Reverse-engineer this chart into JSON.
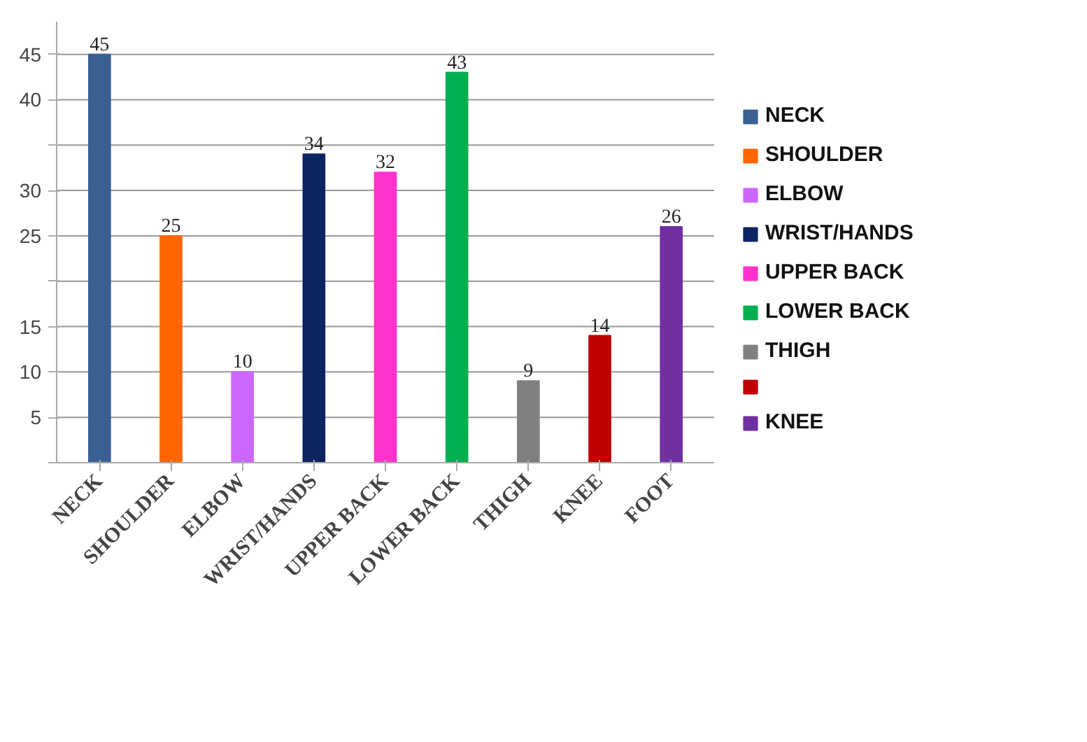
{
  "chart_data": {
    "type": "bar",
    "categories": [
      "NECK",
      "SHOULDER",
      "ELBOW",
      "WRIST/HANDS",
      "UPPER BACK",
      "LOWER BACK",
      "THIGH",
      "KNEE",
      "FOOT"
    ],
    "series": [
      {
        "name": "NECK",
        "color": "#3a6091",
        "values": [
          45,
          null,
          null,
          null,
          null,
          null,
          null,
          null,
          null
        ]
      },
      {
        "name": "SHOULDER",
        "color": "#ff6600",
        "values": [
          null,
          25,
          null,
          null,
          null,
          null,
          null,
          null,
          null
        ]
      },
      {
        "name": "ELBOW",
        "color": "#cc66ff",
        "values": [
          null,
          null,
          10,
          null,
          null,
          null,
          null,
          null,
          null
        ]
      },
      {
        "name": "WRIST/HANDS",
        "color": "#0d2462",
        "values": [
          null,
          null,
          null,
          34,
          null,
          null,
          null,
          null,
          null
        ]
      },
      {
        "name": "UPPER BACK",
        "color": "#ff33cc",
        "values": [
          null,
          null,
          null,
          null,
          32,
          null,
          null,
          null,
          null
        ]
      },
      {
        "name": "LOWER BACK",
        "color": "#00b050",
        "values": [
          null,
          null,
          null,
          null,
          null,
          43,
          null,
          null,
          null
        ]
      },
      {
        "name": "THIGH",
        "color": "#808080",
        "values": [
          null,
          null,
          null,
          null,
          null,
          null,
          9,
          null,
          null
        ]
      },
      {
        "color": "#c00000",
        "values": [
          null,
          null,
          null,
          null,
          null,
          null,
          null,
          14,
          null
        ]
      },
      {
        "name": "KNEE",
        "color": "#7030a0",
        "values": [
          null,
          null,
          null,
          null,
          null,
          null,
          null,
          null,
          26
        ]
      }
    ],
    "ylim": [
      0,
      45
    ],
    "yticks": [
      {
        "value": 0,
        "label": null
      },
      5,
      10,
      15,
      {
        "value": 20,
        "label": null
      },
      25,
      30,
      {
        "value": 35,
        "label": null
      },
      40,
      45
    ],
    "grid": "y",
    "legend": "right",
    "data_labels": true
  }
}
